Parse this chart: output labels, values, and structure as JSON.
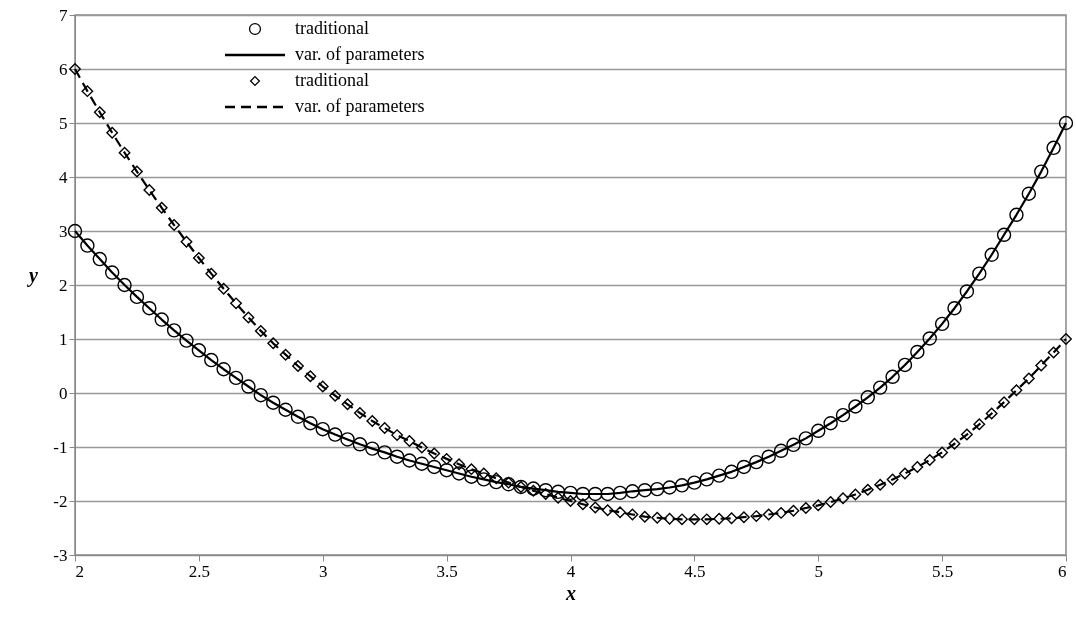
{
  "chart_data": {
    "type": "line",
    "xlabel": "x",
    "ylabel": "y",
    "x": [
      2,
      2.05,
      2.1,
      2.15,
      2.2,
      2.25,
      2.3,
      2.35,
      2.4,
      2.45,
      2.5,
      2.55,
      2.6,
      2.65,
      2.7,
      2.75,
      2.8,
      2.85,
      2.9,
      2.95,
      3,
      3.05,
      3.1,
      3.15,
      3.2,
      3.25,
      3.3,
      3.35,
      3.4,
      3.45,
      3.5,
      3.55,
      3.6,
      3.65,
      3.7,
      3.75,
      3.8,
      3.85,
      3.9,
      3.95,
      4,
      4.05,
      4.1,
      4.15,
      4.2,
      4.25,
      4.3,
      4.35,
      4.4,
      4.45,
      4.5,
      4.55,
      4.6,
      4.65,
      4.7,
      4.75,
      4.8,
      4.85,
      4.9,
      4.95,
      5,
      5.05,
      5.1,
      5.15,
      5.2,
      5.25,
      5.3,
      5.35,
      5.4,
      5.45,
      5.5,
      5.55,
      5.6,
      5.65,
      5.7,
      5.75,
      5.8,
      5.85,
      5.9,
      5.95,
      6
    ],
    "series": [
      {
        "name": "traditional",
        "type": "scatter",
        "marker": "circle",
        "color": "#000000",
        "values": [
          3.0,
          2.73,
          2.48,
          2.23,
          2.0,
          1.78,
          1.57,
          1.36,
          1.16,
          0.97,
          0.79,
          0.61,
          0.44,
          0.28,
          0.12,
          -0.04,
          -0.18,
          -0.31,
          -0.44,
          -0.56,
          -0.67,
          -0.77,
          -0.86,
          -0.95,
          -1.03,
          -1.1,
          -1.18,
          -1.25,
          -1.31,
          -1.37,
          -1.43,
          -1.49,
          -1.55,
          -1.6,
          -1.65,
          -1.69,
          -1.74,
          -1.77,
          -1.8,
          -1.83,
          -1.85,
          -1.87,
          -1.87,
          -1.87,
          -1.85,
          -1.82,
          -1.8,
          -1.78,
          -1.75,
          -1.71,
          -1.66,
          -1.6,
          -1.53,
          -1.46,
          -1.37,
          -1.28,
          -1.18,
          -1.07,
          -0.96,
          -0.84,
          -0.7,
          -0.56,
          -0.41,
          -0.25,
          -0.08,
          0.1,
          0.3,
          0.52,
          0.76,
          1.01,
          1.28,
          1.57,
          1.88,
          2.21,
          2.56,
          2.93,
          3.3,
          3.69,
          4.1,
          4.54,
          5.0
        ]
      },
      {
        "name": "var. of parameters",
        "line_style": "solid",
        "color": "#000000",
        "values": [
          3.0,
          2.73,
          2.48,
          2.23,
          2.0,
          1.78,
          1.57,
          1.36,
          1.16,
          0.97,
          0.79,
          0.61,
          0.44,
          0.28,
          0.12,
          -0.04,
          -0.18,
          -0.31,
          -0.44,
          -0.56,
          -0.67,
          -0.77,
          -0.86,
          -0.95,
          -1.03,
          -1.1,
          -1.18,
          -1.25,
          -1.31,
          -1.37,
          -1.43,
          -1.49,
          -1.55,
          -1.6,
          -1.65,
          -1.69,
          -1.74,
          -1.77,
          -1.8,
          -1.83,
          -1.85,
          -1.87,
          -1.87,
          -1.87,
          -1.85,
          -1.82,
          -1.8,
          -1.78,
          -1.75,
          -1.71,
          -1.66,
          -1.6,
          -1.53,
          -1.46,
          -1.37,
          -1.28,
          -1.18,
          -1.07,
          -0.96,
          -0.84,
          -0.7,
          -0.56,
          -0.41,
          -0.25,
          -0.08,
          0.1,
          0.3,
          0.52,
          0.76,
          1.01,
          1.28,
          1.57,
          1.88,
          2.21,
          2.56,
          2.93,
          3.3,
          3.69,
          4.1,
          4.54,
          5.0
        ]
      },
      {
        "name": "traditional",
        "type": "scatter",
        "marker": "diamond",
        "color": "#000000",
        "values": [
          6.0,
          5.59,
          5.2,
          4.82,
          4.45,
          4.1,
          3.76,
          3.43,
          3.11,
          2.8,
          2.5,
          2.21,
          1.93,
          1.66,
          1.4,
          1.15,
          0.92,
          0.71,
          0.5,
          0.31,
          0.12,
          -0.05,
          -0.21,
          -0.37,
          -0.52,
          -0.65,
          -0.78,
          -0.89,
          -1.01,
          -1.12,
          -1.22,
          -1.32,
          -1.41,
          -1.49,
          -1.58,
          -1.66,
          -1.74,
          -1.81,
          -1.87,
          -1.94,
          -2.0,
          -2.06,
          -2.12,
          -2.17,
          -2.21,
          -2.25,
          -2.29,
          -2.31,
          -2.33,
          -2.34,
          -2.34,
          -2.34,
          -2.33,
          -2.32,
          -2.3,
          -2.28,
          -2.25,
          -2.22,
          -2.18,
          -2.13,
          -2.08,
          -2.02,
          -1.95,
          -1.88,
          -1.79,
          -1.7,
          -1.6,
          -1.49,
          -1.37,
          -1.24,
          -1.1,
          -0.94,
          -0.77,
          -0.58,
          -0.38,
          -0.17,
          0.05,
          0.27,
          0.51,
          0.75,
          1.0
        ]
      },
      {
        "name": "var. of parameters",
        "line_style": "dashed",
        "color": "#000000",
        "values": [
          6.0,
          5.59,
          5.2,
          4.82,
          4.45,
          4.1,
          3.76,
          3.43,
          3.11,
          2.8,
          2.5,
          2.21,
          1.93,
          1.66,
          1.4,
          1.15,
          0.92,
          0.71,
          0.5,
          0.31,
          0.12,
          -0.05,
          -0.21,
          -0.37,
          -0.52,
          -0.65,
          -0.78,
          -0.89,
          -1.01,
          -1.12,
          -1.22,
          -1.32,
          -1.41,
          -1.49,
          -1.58,
          -1.66,
          -1.74,
          -1.81,
          -1.87,
          -1.94,
          -2.0,
          -2.06,
          -2.12,
          -2.17,
          -2.21,
          -2.25,
          -2.29,
          -2.31,
          -2.33,
          -2.34,
          -2.34,
          -2.34,
          -2.33,
          -2.32,
          -2.3,
          -2.28,
          -2.25,
          -2.22,
          -2.18,
          -2.13,
          -2.08,
          -2.02,
          -1.95,
          -1.88,
          -1.79,
          -1.7,
          -1.6,
          -1.49,
          -1.37,
          -1.24,
          -1.1,
          -0.94,
          -0.77,
          -0.58,
          -0.38,
          -0.17,
          0.05,
          0.27,
          0.51,
          0.75,
          1.0
        ]
      }
    ],
    "xlim": [
      2,
      6
    ],
    "xticks": [
      2,
      2.5,
      3,
      3.5,
      4,
      4.5,
      5,
      5.5,
      6
    ],
    "ylim": [
      -3,
      7
    ],
    "yticks": [
      -3,
      -2,
      -1,
      0,
      1,
      2,
      3,
      4,
      5,
      6,
      7
    ],
    "grid": "y",
    "legend": "top left"
  }
}
